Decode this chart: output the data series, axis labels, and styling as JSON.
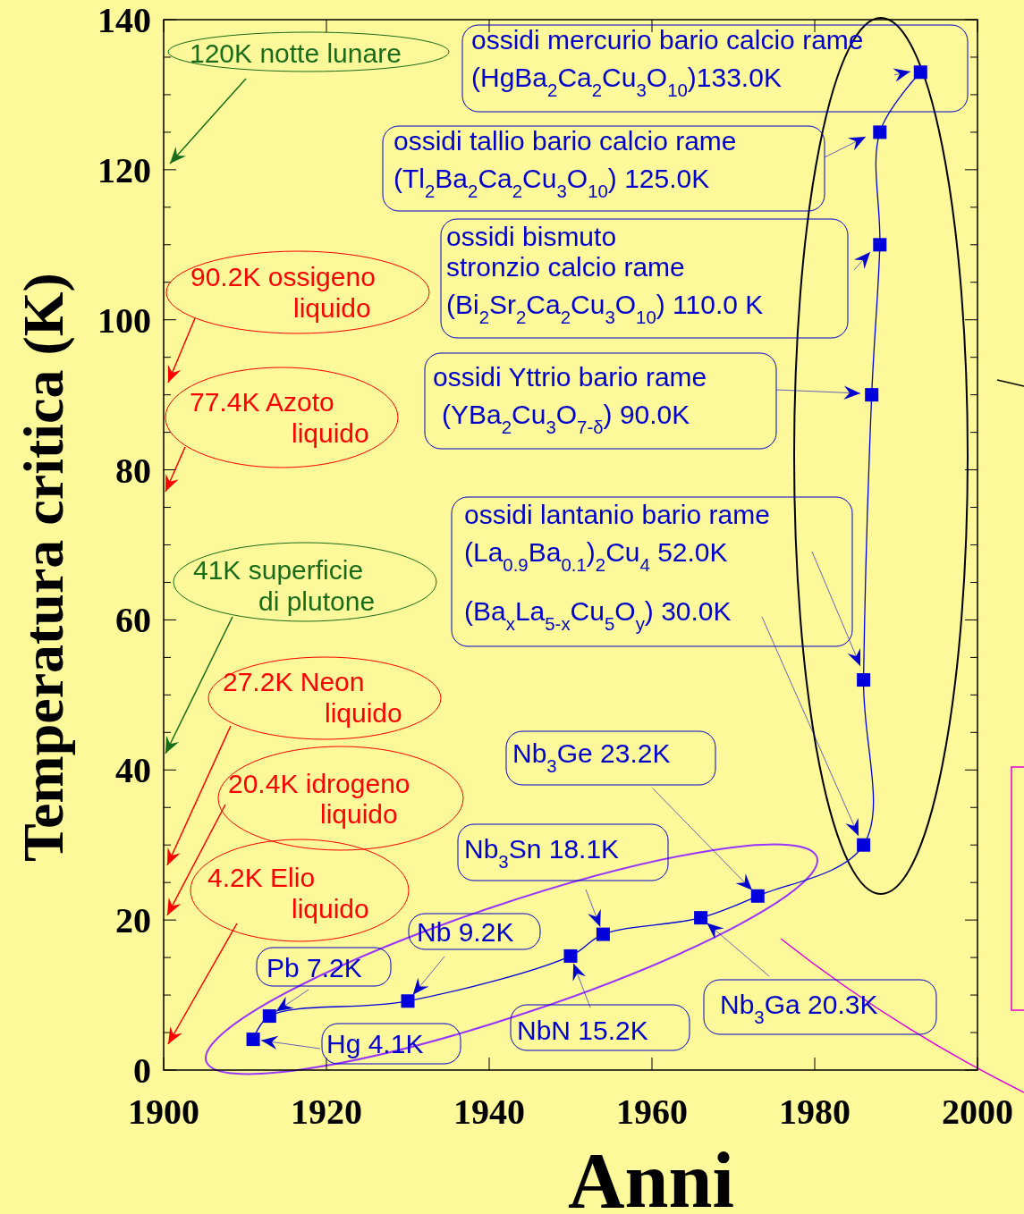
{
  "chart_data": {
    "type": "line",
    "xlabel": "Anni",
    "ylabel": "Temperatura critica (K)",
    "xlim": [
      1900,
      2000
    ],
    "xticks": [
      1900,
      1920,
      1940,
      1960,
      1980,
      2000
    ],
    "ylim": [
      0,
      140
    ],
    "yticks": [
      0,
      {
        "value": 5,
        "label": null
      },
      {
        "value": 10,
        "label": null
      },
      {
        "value": 15,
        "label": null
      },
      20,
      {
        "value": 25,
        "label": null
      },
      {
        "value": 30,
        "label": null
      },
      {
        "value": 35,
        "label": null
      },
      40,
      {
        "value": 45,
        "label": null
      },
      {
        "value": 50,
        "label": null
      },
      {
        "value": 55,
        "label": null
      },
      60,
      {
        "value": 65,
        "label": null
      },
      {
        "value": 70,
        "label": null
      },
      {
        "value": 75,
        "label": null
      },
      80,
      {
        "value": 85,
        "label": null
      },
      {
        "value": 90,
        "label": null
      },
      {
        "value": 95,
        "label": null
      },
      100,
      {
        "value": 105,
        "label": null
      },
      {
        "value": 110,
        "label": null
      },
      {
        "value": 115,
        "label": null
      },
      120,
      {
        "value": 125,
        "label": null
      },
      {
        "value": 130,
        "label": null
      },
      {
        "value": 135,
        "label": null
      },
      140
    ],
    "marker": "square",
    "line_style": "solid",
    "series": [
      {
        "color": "#0000dd",
        "x": [
          1911,
          1913,
          1930,
          1950,
          1954,
          1966,
          1973,
          1986,
          1986,
          1987,
          1988,
          1988,
          1993
        ],
        "values": [
          4.1,
          7.2,
          9.2,
          15.2,
          18.1,
          20.3,
          23.2,
          30.0,
          52.0,
          90.0,
          110.0,
          125.0,
          133.0
        ]
      }
    ],
    "annotations": [
      "120K notte lunare",
      "90.2K ossigeno\nliquido",
      "77.4K Azoto\nliquido",
      "41K superficie\ndi plutone",
      "27.2K Neon\nliquido",
      "20.4K idrogeno\nliquido",
      "4.2K Elio\nliquido",
      {
        "text": "Hg 4.1K",
        "x": 1911,
        "y": 4.1
      },
      {
        "text": "Pb 7.2K",
        "x": 1913,
        "y": 7.2
      },
      {
        "text": "Nb 9.2K",
        "x": 1930,
        "y": 9.2
      },
      {
        "text": "NbN 15.2K",
        "x": 1950,
        "y": 15.2
      },
      {
        "text": "Nb$_{3}$Sn 18.1K",
        "x": 1954,
        "y": 18.1
      },
      {
        "text": "Nb$_{3}$Ga  20.3K",
        "x": 1966,
        "y": 20.3
      },
      {
        "text": "Nb$_{3}$Ge 23.2K",
        "x": 1973,
        "y": 23.2
      },
      "ossidi lantanio bario rame\n(La$_{0.9}$Ba$_{0.1}$)$_{2}$Cu$_{4}$  52.0K",
      "(Ba$_{x}$La$_{5-x}$Cu$_{5}$O$_{y}$) 30.0K",
      "ossidi Yttrio bario rame\n(YBa$_{2}$Cu$_{3}$O$_{7-δ}$)  90.0K",
      "ossidi bismuto\nstronzio calcio rame\n(Bi$_{2}$Sr$_{2}$Ca$_{2}$Cu$_{3}$O$_{10}$) 110.0 K",
      "ossidi tallio bario calcio rame\n(Tl$_{2}$Ba$_{2}$Ca$_{2}$Cu$_{3}$O$_{10}$) 125.0K",
      "ossidi mercurio bario calcio rame\n(HgBa$_{2}$Ca$_{2}$Cu$_{3}$O$_{10}$)133.0K"
    ]
  }
}
